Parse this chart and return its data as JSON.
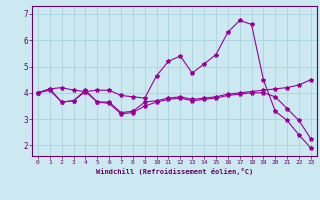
{
  "title": "",
  "xlabel": "Windchill (Refroidissement éolien,°C)",
  "ylabel": "",
  "bg_color": "#cce8f0",
  "line_color": "#990099",
  "grid_color": "#aad4dc",
  "axis_color": "#660066",
  "text_color": "#660066",
  "xlim": [
    -0.5,
    23.5
  ],
  "ylim": [
    1.6,
    7.3
  ],
  "yticks": [
    2,
    3,
    4,
    5,
    6,
    7
  ],
  "xticks": [
    0,
    1,
    2,
    3,
    4,
    5,
    6,
    7,
    8,
    9,
    10,
    11,
    12,
    13,
    14,
    15,
    16,
    17,
    18,
    19,
    20,
    21,
    22,
    23
  ],
  "line1_x": [
    0,
    1,
    2,
    3,
    4,
    5,
    6,
    7,
    8,
    9,
    10,
    11,
    12,
    13,
    14,
    15,
    16,
    17,
    18,
    19,
    20,
    21,
    22,
    23
  ],
  "line1_y": [
    4.0,
    4.15,
    4.2,
    4.1,
    4.05,
    4.1,
    4.1,
    3.9,
    3.85,
    3.8,
    4.65,
    5.2,
    5.4,
    4.75,
    5.1,
    5.45,
    6.3,
    6.75,
    6.6,
    4.5,
    3.3,
    2.95,
    2.4,
    1.9
  ],
  "line2_x": [
    0,
    1,
    2,
    3,
    4,
    5,
    6,
    7,
    8,
    9,
    10,
    11,
    12,
    13,
    14,
    15,
    16,
    17,
    18,
    19,
    20,
    21,
    22,
    23
  ],
  "line2_y": [
    4.0,
    4.15,
    3.65,
    3.7,
    4.1,
    3.65,
    3.65,
    3.25,
    3.3,
    3.65,
    3.7,
    3.8,
    3.85,
    3.75,
    3.8,
    3.85,
    3.95,
    4.0,
    4.05,
    4.1,
    4.15,
    4.2,
    4.3,
    4.5
  ],
  "line3_x": [
    0,
    1,
    2,
    3,
    4,
    5,
    6,
    7,
    8,
    9,
    10,
    11,
    12,
    13,
    14,
    15,
    16,
    17,
    18,
    19,
    20,
    21,
    22,
    23
  ],
  "line3_y": [
    4.0,
    4.1,
    3.65,
    3.7,
    4.05,
    3.65,
    3.6,
    3.2,
    3.25,
    3.5,
    3.65,
    3.75,
    3.8,
    3.7,
    3.75,
    3.8,
    3.9,
    3.95,
    4.0,
    4.0,
    3.85,
    3.4,
    2.95,
    2.25
  ]
}
